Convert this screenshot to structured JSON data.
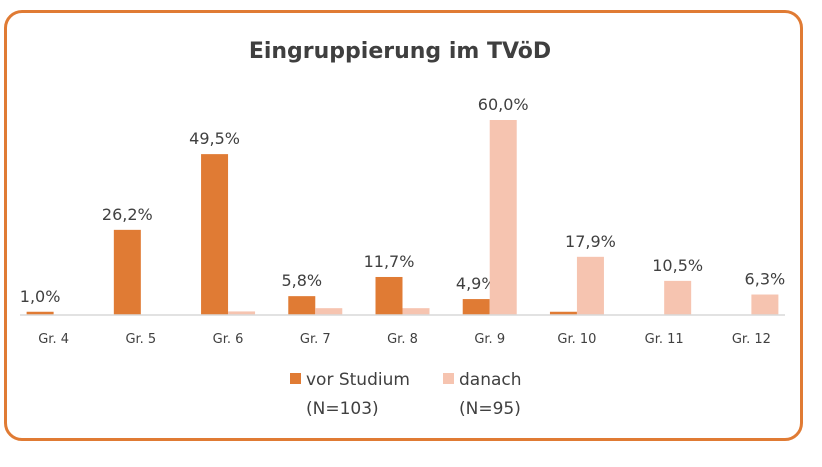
{
  "chart_data": {
    "type": "bar",
    "title": "Eingruppierung im TVöD",
    "categories": [
      "Gr. 4",
      "Gr. 5",
      "Gr. 6",
      "Gr. 7",
      "Gr. 8",
      "Gr. 9",
      "Gr. 10",
      "Gr. 11",
      "Gr. 12"
    ],
    "series": [
      {
        "name_line1": "vor Studium",
        "name_line2": "(N=103)",
        "color": "#e07b34",
        "values": [
          1.0,
          26.2,
          49.5,
          5.8,
          11.7,
          4.9,
          1.0,
          0,
          0
        ],
        "labels": [
          "1,0%",
          "26,2%",
          "49,5%",
          "5,8%",
          "11,7%",
          "4,9%",
          "",
          "",
          ""
        ]
      },
      {
        "name_line1": "danach",
        "name_line2": "(N=95)",
        "color": "#f6c4b0",
        "values": [
          0,
          0,
          1.1,
          2.1,
          2.1,
          60.0,
          17.9,
          10.5,
          6.3
        ],
        "labels": [
          "",
          "",
          "",
          "",
          "",
          "60,0%",
          "17,9%",
          "10,5%",
          "6,3%"
        ]
      }
    ],
    "ylim": [
      0,
      60
    ],
    "legend_position": "bottom",
    "grid": false,
    "axis_color": "#d9d9d9"
  }
}
